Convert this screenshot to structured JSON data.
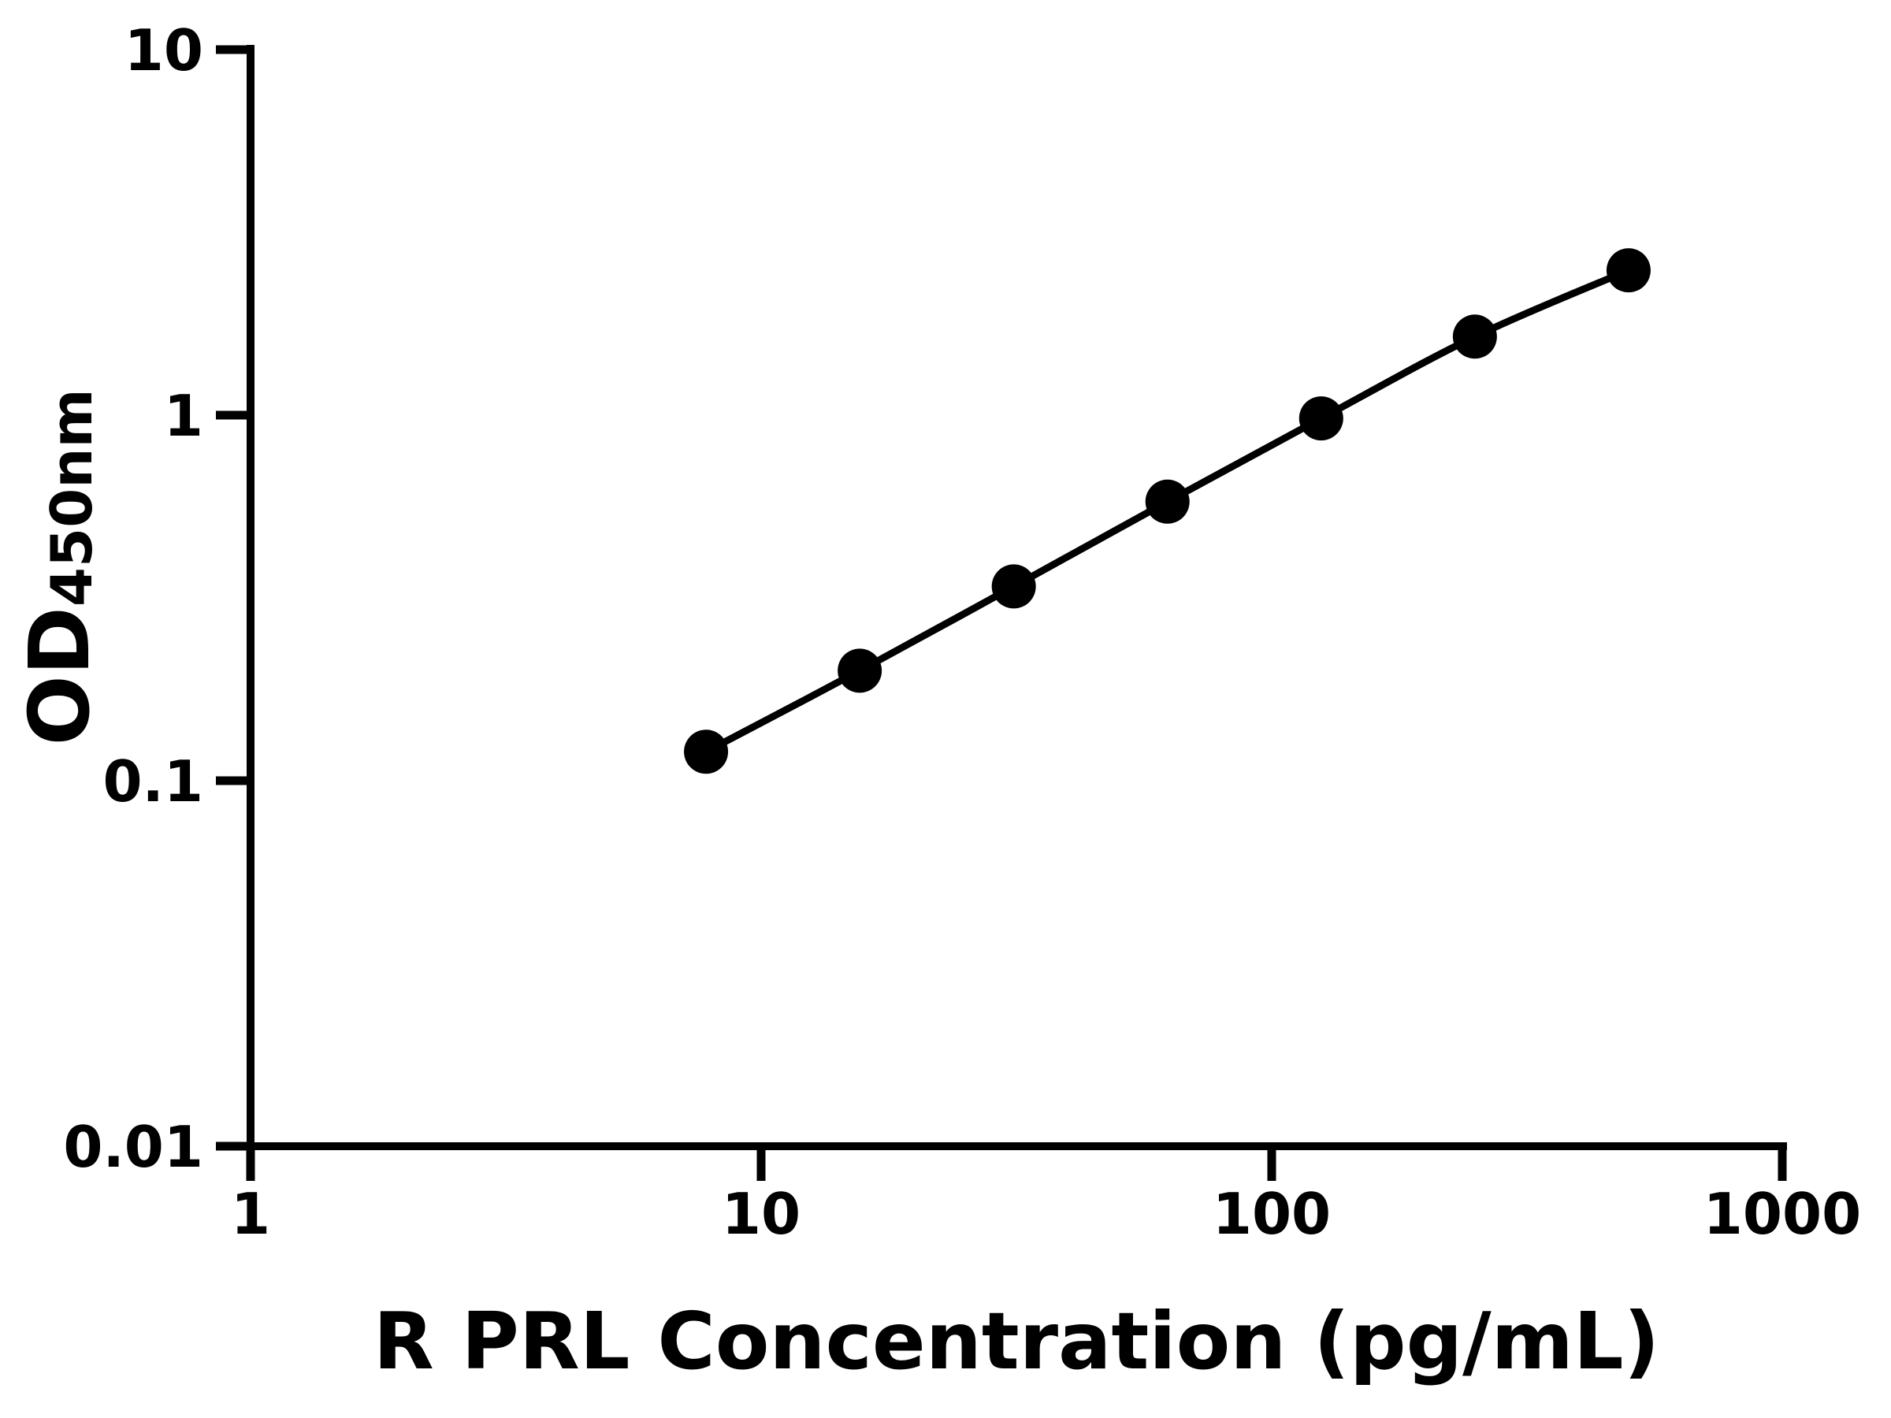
{
  "chart": {
    "x_title": "R PRL Concentration (pg/mL)",
    "y_title_main": "OD",
    "y_title_sub": "450nm"
  },
  "chart_data": {
    "type": "line",
    "title": "",
    "xlabel": "R PRL Concentration (pg/mL)",
    "ylabel": "OD450nm",
    "x": [
      7.8,
      15.6,
      31.25,
      62.5,
      125,
      250,
      500
    ],
    "y": [
      0.12,
      0.2,
      0.34,
      0.58,
      0.98,
      1.64,
      2.49
    ],
    "xscale": "log",
    "yscale": "log",
    "xlim": [
      1,
      1000
    ],
    "ylim": [
      0.01,
      10
    ],
    "xticks": [
      "1",
      "10",
      "100",
      "1000"
    ],
    "yticks": [
      "10",
      "1",
      "0.1",
      "0.01"
    ],
    "grid": false,
    "legend": false,
    "marker": "filled-circle",
    "line_color": "#000000",
    "marker_color": "#000000",
    "axis_color": "#000000",
    "background_color": "#ffffff"
  }
}
